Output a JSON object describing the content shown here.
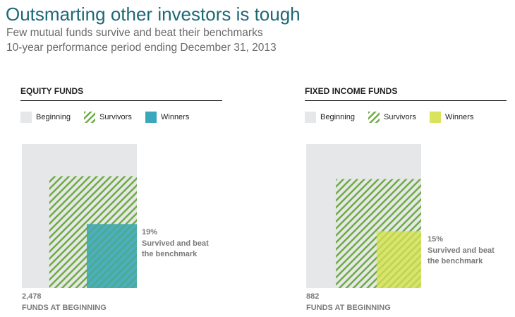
{
  "header": {
    "title": "Outsmarting other investors is tough",
    "subtitle_1": "Few mutual funds survive and beat their benchmarks",
    "subtitle_2": "10-year performance period ending December 31, 2013"
  },
  "legend_labels": {
    "beginning": "Beginning",
    "survivors": "Survivors",
    "winners": "Winners"
  },
  "colors": {
    "beginning": "#e6e7e8",
    "survivors_stripe": "#6aaa3c",
    "equity_winners": "#3aa8bb",
    "fixed_income_winners": "#d9e35c"
  },
  "chart_data": [
    {
      "type": "nested-area",
      "title": "EQUITY FUNDS",
      "funds_at_beginning": 2478,
      "funds_at_beginning_text": "2,478",
      "funds_at_beginning_label": "FUNDS AT BEGINNING",
      "series": [
        {
          "name": "Beginning",
          "share": 1.0
        },
        {
          "name": "Survivors",
          "share": 0.58
        },
        {
          "name": "Winners",
          "share": 0.19
        }
      ],
      "annotation": {
        "percent": "19%",
        "line1": "Survived and beat",
        "line2": "the benchmark"
      }
    },
    {
      "type": "nested-area",
      "title": "FIXED INCOME FUNDS",
      "funds_at_beginning": 882,
      "funds_at_beginning_text": "882",
      "funds_at_beginning_label": "FUNDS AT BEGINNING",
      "series": [
        {
          "name": "Beginning",
          "share": 1.0
        },
        {
          "name": "Survivors",
          "share": 0.55
        },
        {
          "name": "Winners",
          "share": 0.15
        }
      ],
      "annotation": {
        "percent": "15%",
        "line1": "Survived and beat",
        "line2": "the benchmark"
      }
    }
  ]
}
